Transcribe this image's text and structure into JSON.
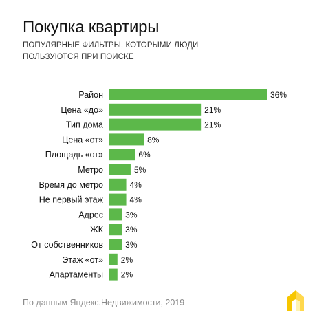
{
  "header": {
    "title": "Покупка квартиры",
    "subtitle": "Популярные фильтры, которыми люди пользуются при поиске"
  },
  "chart_data": {
    "type": "bar",
    "orientation": "horizontal",
    "categories": [
      "Район",
      "Цена «до»",
      "Тип дома",
      "Цена «от»",
      "Площадь «от»",
      "Метро",
      "Время до метро",
      "Не первый этаж",
      "Адрес",
      "ЖК",
      "От собственников",
      "Этаж «от»",
      "Апартаменты"
    ],
    "values": [
      36,
      21,
      21,
      8,
      6,
      5,
      4,
      4,
      3,
      3,
      3,
      2,
      2
    ],
    "value_labels": [
      "36%",
      "21%",
      "21%",
      "8%",
      "6%",
      "5%",
      "4%",
      "4%",
      "3%",
      "3%",
      "3%",
      "2%",
      "2%"
    ],
    "unit": "%",
    "xlim": [
      0,
      36
    ],
    "grid": false,
    "legend": "none",
    "bar_color": "#5cb84a"
  },
  "footer": {
    "source": "По данным Яндекс.Недвижимости, 2019"
  },
  "logo": {
    "icon": "house-logo-icon",
    "color": "#f7c600"
  }
}
